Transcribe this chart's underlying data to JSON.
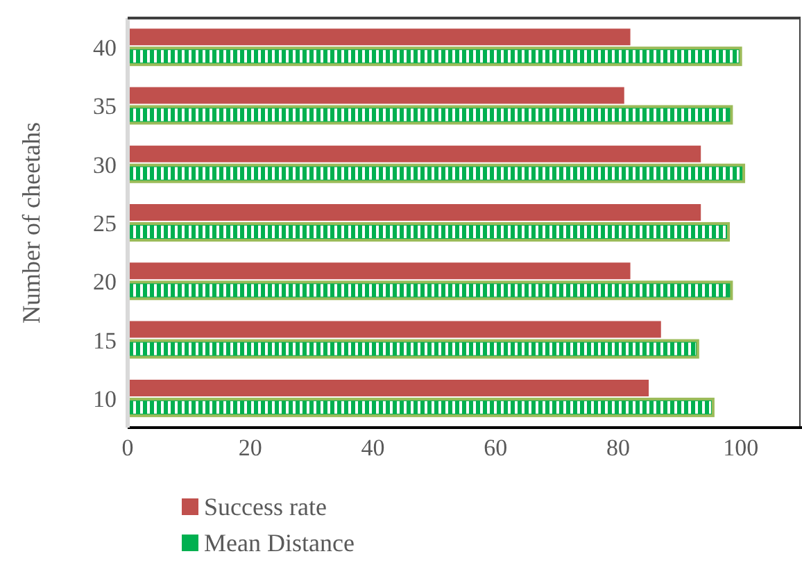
{
  "chart_data": {
    "type": "bar",
    "orientation": "horizontal",
    "ylabel": "Number of cheetahs",
    "categories": [
      "40",
      "35",
      "30",
      "25",
      "20",
      "15",
      "10"
    ],
    "series": [
      {
        "name": "Success rate",
        "color": "#c0504d",
        "values": [
          82,
          81,
          93.5,
          93.5,
          82,
          87,
          85
        ]
      },
      {
        "name": "Mean Distance",
        "color": "#00b050",
        "values": [
          100,
          98.5,
          100.5,
          98,
          98.5,
          93,
          95.5
        ]
      }
    ],
    "xlim": [
      0,
      110
    ],
    "xticks": [
      0,
      20,
      40,
      60,
      80,
      100
    ],
    "grid": false,
    "legend": "bottom"
  }
}
